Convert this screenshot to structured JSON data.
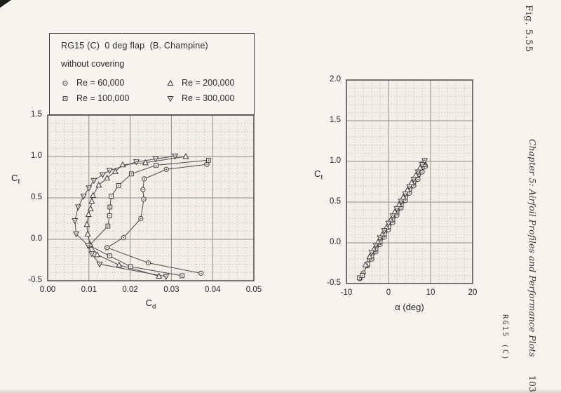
{
  "page": {
    "background_color": "#f7f4ef"
  },
  "legend": {
    "title": "RG15 (C)  0 deg flap  (B. Champine)",
    "subtitle": "without covering",
    "entries": [
      {
        "marker": "circle-dot",
        "label": "Re = 60,000"
      },
      {
        "marker": "square-dot",
        "label": "Re = 100,000"
      },
      {
        "marker": "triangle-up",
        "label": "Re = 200,000"
      },
      {
        "marker": "triangle-down",
        "label": "Re = 300,000"
      }
    ]
  },
  "axis_labels": {
    "polar": {
      "y_main": "C",
      "y_sub": "ℓ",
      "x_main": "C",
      "x_sub": "d"
    },
    "lift": {
      "y_main": "C",
      "y_sub": "ℓ",
      "x_text": "α (deg)"
    }
  },
  "margin": {
    "figure_label": "Fig. 5.55",
    "chapter_header": "Chapter 5: Airfoil Profiles and Performance Plots",
    "page_number": "103",
    "footer_tag": "RG15 (C)"
  },
  "chart_data": [
    {
      "type": "scatter",
      "name": "drag-polar",
      "title": "RG15 (C) drag polar, without covering",
      "xlabel": "Cd",
      "ylabel": "Cl",
      "xlim": [
        0.0,
        0.05
      ],
      "ylim": [
        -0.5,
        1.5
      ],
      "x_major": 0.01,
      "x_minor": 0.002,
      "y_major": 0.5,
      "y_minor": 0.1,
      "xticks": [
        "0.00",
        "0.01",
        "0.02",
        "0.03",
        "0.04",
        "0.05"
      ],
      "yticks": [
        "-0.5",
        "0.0",
        "0.5",
        "1.0",
        "1.5"
      ],
      "grid": "major-solid, minor-dotted",
      "legend_position": "above",
      "series": [
        {
          "name": "Re = 60,000",
          "marker": "circle-dot",
          "points": [
            [
              0.0372,
              -0.41
            ],
            [
              0.0244,
              -0.285
            ],
            [
              0.0144,
              -0.1
            ],
            [
              0.0184,
              0.02
            ],
            [
              0.0226,
              0.25
            ],
            [
              0.0233,
              0.485
            ],
            [
              0.0231,
              0.6
            ],
            [
              0.0234,
              0.73
            ],
            [
              0.0288,
              0.845
            ],
            [
              0.0386,
              0.905
            ]
          ]
        },
        {
          "name": "Re = 100,000",
          "marker": "square-dot",
          "points": [
            [
              0.0326,
              -0.44
            ],
            [
              0.0201,
              -0.33
            ],
            [
              0.015,
              -0.2
            ],
            [
              0.0101,
              -0.075
            ],
            [
              0.0146,
              0.16
            ],
            [
              0.015,
              0.285
            ],
            [
              0.0151,
              0.39
            ],
            [
              0.0154,
              0.52
            ],
            [
              0.0172,
              0.65
            ],
            [
              0.0203,
              0.79
            ],
            [
              0.0263,
              0.895
            ],
            [
              0.039,
              0.955
            ]
          ]
        },
        {
          "name": "Re = 200,000",
          "marker": "triangle-up",
          "points": [
            [
              0.027,
              -0.445
            ],
            [
              0.0173,
              -0.31
            ],
            [
              0.012,
              -0.185
            ],
            [
              0.0103,
              -0.06
            ],
            [
              0.0097,
              0.065
            ],
            [
              0.0095,
              0.18
            ],
            [
              0.0099,
              0.3
            ],
            [
              0.0104,
              0.37
            ],
            [
              0.0107,
              0.46
            ],
            [
              0.011,
              0.53
            ],
            [
              0.0124,
              0.655
            ],
            [
              0.0144,
              0.74
            ],
            [
              0.0164,
              0.82
            ],
            [
              0.0182,
              0.9
            ],
            [
              0.0237,
              0.925
            ],
            [
              0.0335,
              1.0
            ]
          ]
        },
        {
          "name": "Re = 300,000",
          "marker": "triangle-down",
          "points": [
            [
              0.0287,
              -0.45
            ],
            [
              0.0126,
              -0.3
            ],
            [
              0.0107,
              -0.175
            ],
            [
              0.0098,
              -0.075
            ],
            [
              0.0069,
              0.065
            ],
            [
              0.0066,
              0.225
            ],
            [
              0.0074,
              0.39
            ],
            [
              0.0087,
              0.52
            ],
            [
              0.01,
              0.62
            ],
            [
              0.0112,
              0.71
            ],
            [
              0.0133,
              0.78
            ],
            [
              0.015,
              0.83
            ],
            [
              0.0215,
              0.935
            ],
            [
              0.0262,
              0.97
            ],
            [
              0.0309,
              1.005
            ]
          ]
        }
      ]
    },
    {
      "type": "scatter",
      "name": "lift-curve",
      "title": "RG15 (C) lift curve, without covering",
      "xlabel": "α (deg)",
      "ylabel": "Cl",
      "xlim": [
        -10,
        20
      ],
      "ylim": [
        -0.5,
        2.0
      ],
      "x_major": 10,
      "x_minor": 2,
      "y_major": 0.5,
      "y_minor": 0.1,
      "xticks": [
        "-10",
        "0",
        "10",
        "20"
      ],
      "yticks": [
        "-0.5",
        "0.0",
        "0.5",
        "1.0",
        "1.5",
        "2.0"
      ],
      "grid": "major-solid, minor-dotted",
      "series": [
        {
          "name": "Re = 60,000",
          "marker": "circle-dot",
          "points": [
            [
              -6.8,
              -0.44
            ],
            [
              -6.0,
              -0.37
            ],
            [
              -5.0,
              -0.28
            ],
            [
              -4.0,
              -0.2
            ],
            [
              -3.0,
              -0.11
            ],
            [
              -2.0,
              -0.02
            ],
            [
              -1.0,
              0.07
            ],
            [
              0,
              0.16
            ],
            [
              1,
              0.25
            ],
            [
              2,
              0.34
            ],
            [
              3,
              0.43
            ],
            [
              4,
              0.52
            ],
            [
              5,
              0.61
            ],
            [
              6,
              0.7
            ],
            [
              7,
              0.78
            ],
            [
              8,
              0.87
            ],
            [
              8.8,
              0.94
            ]
          ]
        },
        {
          "name": "Re = 100,000",
          "marker": "square-dot",
          "points": [
            [
              -6.9,
              -0.43
            ],
            [
              -6.2,
              -0.4
            ],
            [
              -5.0,
              -0.26
            ],
            [
              -4.0,
              -0.16
            ],
            [
              -3.0,
              -0.07
            ],
            [
              -2.0,
              0.02
            ],
            [
              -1.0,
              0.11
            ],
            [
              0,
              0.2
            ],
            [
              1,
              0.29
            ],
            [
              2,
              0.38
            ],
            [
              3,
              0.47
            ],
            [
              4,
              0.56
            ],
            [
              5,
              0.66
            ],
            [
              6,
              0.75
            ],
            [
              7,
              0.84
            ],
            [
              8,
              0.93
            ],
            [
              8.5,
              0.96
            ]
          ]
        },
        {
          "name": "Re = 200,000",
          "marker": "triangle-up",
          "points": [
            [
              -5.5,
              -0.27
            ],
            [
              -4.5,
              -0.17
            ],
            [
              -3.5,
              -0.08
            ],
            [
              -2.5,
              0.01
            ],
            [
              -1.5,
              0.1
            ],
            [
              -0.5,
              0.19
            ],
            [
              0.5,
              0.28
            ],
            [
              1.5,
              0.38
            ],
            [
              2.5,
              0.47
            ],
            [
              3.5,
              0.56
            ],
            [
              4.5,
              0.65
            ],
            [
              5.5,
              0.74
            ],
            [
              6.5,
              0.83
            ],
            [
              7.5,
              0.92
            ],
            [
              8.3,
              0.99
            ]
          ]
        },
        {
          "name": "Re = 300,000",
          "marker": "triangle-down",
          "points": [
            [
              -4.0,
              -0.12
            ],
            [
              -3.0,
              -0.03
            ],
            [
              -2.0,
              0.06
            ],
            [
              -1.0,
              0.15
            ],
            [
              0,
              0.24
            ],
            [
              1,
              0.33
            ],
            [
              2,
              0.42
            ],
            [
              3,
              0.51
            ],
            [
              4,
              0.6
            ],
            [
              5,
              0.69
            ],
            [
              6,
              0.78
            ],
            [
              7,
              0.87
            ],
            [
              8,
              0.96
            ],
            [
              8.6,
              1.01
            ]
          ]
        }
      ]
    }
  ]
}
